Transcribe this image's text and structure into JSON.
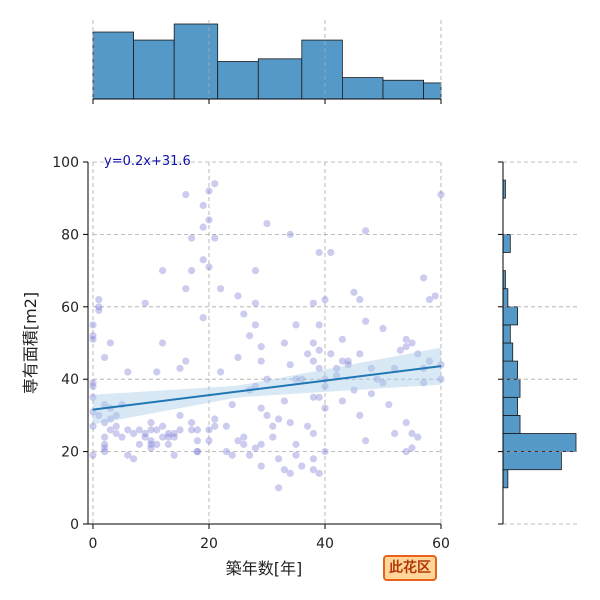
{
  "chart_data": {
    "type": "scatter",
    "xlabel": "築年数[年]",
    "ylabel": "専有面積[m2]",
    "xlim": [
      0,
      60
    ],
    "ylim": [
      0,
      100
    ],
    "x_ticks": [
      0,
      20,
      40,
      60
    ],
    "y_ticks": [
      0,
      20,
      40,
      60,
      80,
      100
    ],
    "grid": true,
    "annotation": "y=0.2x+31.6",
    "badge": "此花区",
    "regression": {
      "slope": 0.2,
      "intercept": 31.6,
      "x_range": [
        0,
        60
      ]
    },
    "colors": {
      "points": "#8080d8",
      "fit_line": "#1f77b4",
      "band": "#a9cbe6",
      "hist": "#5599c8",
      "badge_border": "#e8611a",
      "badge_bg": "#ffd59a"
    },
    "marginal_x": {
      "bin_edges": [
        0,
        7,
        14,
        21.5,
        28.5,
        36,
        43,
        50,
        57,
        60
      ],
      "counts": [
        25,
        22,
        28,
        14,
        15,
        22,
        8,
        7,
        6
      ]
    },
    "marginal_y": {
      "bin_edges": [
        10,
        15,
        20,
        25,
        30,
        35,
        40,
        45,
        50,
        55,
        60,
        65,
        70,
        75,
        80,
        85,
        90,
        95
      ],
      "counts": [
        2,
        24,
        30,
        7,
        6,
        7,
        6,
        4,
        3,
        6,
        2,
        1,
        0,
        3,
        0,
        0,
        1
      ]
    },
    "points": [
      [
        0,
        19
      ],
      [
        0,
        27
      ],
      [
        0,
        31
      ],
      [
        0,
        35
      ],
      [
        0,
        38
      ],
      [
        0,
        39
      ],
      [
        0,
        51
      ],
      [
        0,
        52
      ],
      [
        0,
        55
      ],
      [
        1,
        59
      ],
      [
        1,
        60
      ],
      [
        1,
        62
      ],
      [
        1,
        30
      ],
      [
        2,
        24
      ],
      [
        2,
        22
      ],
      [
        2,
        20
      ],
      [
        2,
        21
      ],
      [
        2,
        33
      ],
      [
        2,
        46
      ],
      [
        2,
        28
      ],
      [
        3,
        50
      ],
      [
        3,
        29
      ],
      [
        3,
        26
      ],
      [
        3,
        32
      ],
      [
        4,
        25
      ],
      [
        4,
        30
      ],
      [
        4,
        27
      ],
      [
        5,
        24
      ],
      [
        5,
        33
      ],
      [
        6,
        19
      ],
      [
        6,
        42
      ],
      [
        6,
        26
      ],
      [
        7,
        25
      ],
      [
        7,
        18
      ],
      [
        8,
        26
      ],
      [
        8,
        22
      ],
      [
        9,
        61
      ],
      [
        9,
        25
      ],
      [
        9,
        24
      ],
      [
        10,
        22
      ],
      [
        10,
        21
      ],
      [
        10,
        26
      ],
      [
        10,
        23
      ],
      [
        10,
        28
      ],
      [
        11,
        22
      ],
      [
        11,
        26
      ],
      [
        11,
        42
      ],
      [
        12,
        24
      ],
      [
        12,
        27
      ],
      [
        12,
        50
      ],
      [
        12,
        70
      ],
      [
        13,
        24
      ],
      [
        13,
        22
      ],
      [
        13,
        25
      ],
      [
        14,
        25
      ],
      [
        14,
        24
      ],
      [
        14,
        19
      ],
      [
        15,
        26
      ],
      [
        15,
        30
      ],
      [
        15,
        43
      ],
      [
        16,
        91
      ],
      [
        16,
        65
      ],
      [
        16,
        45
      ],
      [
        17,
        79
      ],
      [
        17,
        70
      ],
      [
        17,
        26
      ],
      [
        17,
        28
      ],
      [
        18,
        20
      ],
      [
        18,
        26
      ],
      [
        18,
        20
      ],
      [
        18,
        23
      ],
      [
        19,
        57
      ],
      [
        19,
        82
      ],
      [
        19,
        88
      ],
      [
        19,
        73
      ],
      [
        20,
        92
      ],
      [
        20,
        84
      ],
      [
        20,
        71
      ],
      [
        20,
        26
      ],
      [
        20,
        23
      ],
      [
        21,
        94
      ],
      [
        21,
        27
      ],
      [
        21,
        29
      ],
      [
        21,
        79
      ],
      [
        22,
        42
      ],
      [
        22,
        65
      ],
      [
        23,
        20
      ],
      [
        23,
        27
      ],
      [
        24,
        19
      ],
      [
        24,
        33
      ],
      [
        25,
        46
      ],
      [
        25,
        63
      ],
      [
        25,
        23
      ],
      [
        26,
        24
      ],
      [
        26,
        22
      ],
      [
        26,
        58
      ],
      [
        27,
        37
      ],
      [
        27,
        52
      ],
      [
        27,
        19
      ],
      [
        28,
        70
      ],
      [
        28,
        61
      ],
      [
        28,
        55
      ],
      [
        28,
        21
      ],
      [
        28,
        38
      ],
      [
        29,
        49
      ],
      [
        29,
        32
      ],
      [
        29,
        45
      ],
      [
        29,
        22
      ],
      [
        29,
        16
      ],
      [
        30,
        83
      ],
      [
        30,
        40
      ],
      [
        30,
        30
      ],
      [
        31,
        24
      ],
      [
        31,
        27
      ],
      [
        32,
        10
      ],
      [
        32,
        18
      ],
      [
        32,
        29
      ],
      [
        33,
        15
      ],
      [
        33,
        34
      ],
      [
        33,
        50
      ],
      [
        34,
        80
      ],
      [
        34,
        44
      ],
      [
        34,
        28
      ],
      [
        34,
        14
      ],
      [
        35,
        22
      ],
      [
        35,
        19
      ],
      [
        35,
        55
      ],
      [
        35,
        40
      ],
      [
        36,
        16
      ],
      [
        36,
        40
      ],
      [
        37,
        27
      ],
      [
        37,
        47
      ],
      [
        38,
        50
      ],
      [
        38,
        45
      ],
      [
        38,
        61
      ],
      [
        38,
        35
      ],
      [
        38,
        25
      ],
      [
        38,
        18
      ],
      [
        38,
        15
      ],
      [
        39,
        75
      ],
      [
        39,
        55
      ],
      [
        39,
        43
      ],
      [
        39,
        48
      ],
      [
        39,
        35
      ],
      [
        39,
        14
      ],
      [
        40,
        40
      ],
      [
        40,
        32
      ],
      [
        40,
        62
      ],
      [
        40,
        20
      ],
      [
        40,
        38
      ],
      [
        41,
        75
      ],
      [
        41,
        47
      ],
      [
        42,
        41
      ],
      [
        42,
        43
      ],
      [
        43,
        45
      ],
      [
        43,
        51
      ],
      [
        43,
        34
      ],
      [
        44,
        44
      ],
      [
        44,
        45
      ],
      [
        45,
        64
      ],
      [
        45,
        37
      ],
      [
        46,
        62
      ],
      [
        46,
        30
      ],
      [
        46,
        47
      ],
      [
        47,
        81
      ],
      [
        47,
        56
      ],
      [
        47,
        23
      ],
      [
        48,
        43
      ],
      [
        48,
        36
      ],
      [
        49,
        40
      ],
      [
        50,
        54
      ],
      [
        50,
        39
      ],
      [
        51,
        33
      ],
      [
        52,
        25
      ],
      [
        52,
        43
      ],
      [
        53,
        48
      ],
      [
        54,
        20
      ],
      [
        54,
        28
      ],
      [
        54,
        51
      ],
      [
        54,
        49
      ],
      [
        55,
        21
      ],
      [
        55,
        25
      ],
      [
        55,
        50
      ],
      [
        56,
        47
      ],
      [
        56,
        24
      ],
      [
        57,
        68
      ],
      [
        57,
        43
      ],
      [
        57,
        39
      ],
      [
        58,
        62
      ],
      [
        58,
        45
      ],
      [
        59,
        63
      ],
      [
        60,
        91
      ],
      [
        60,
        44
      ],
      [
        60,
        40
      ]
    ]
  }
}
